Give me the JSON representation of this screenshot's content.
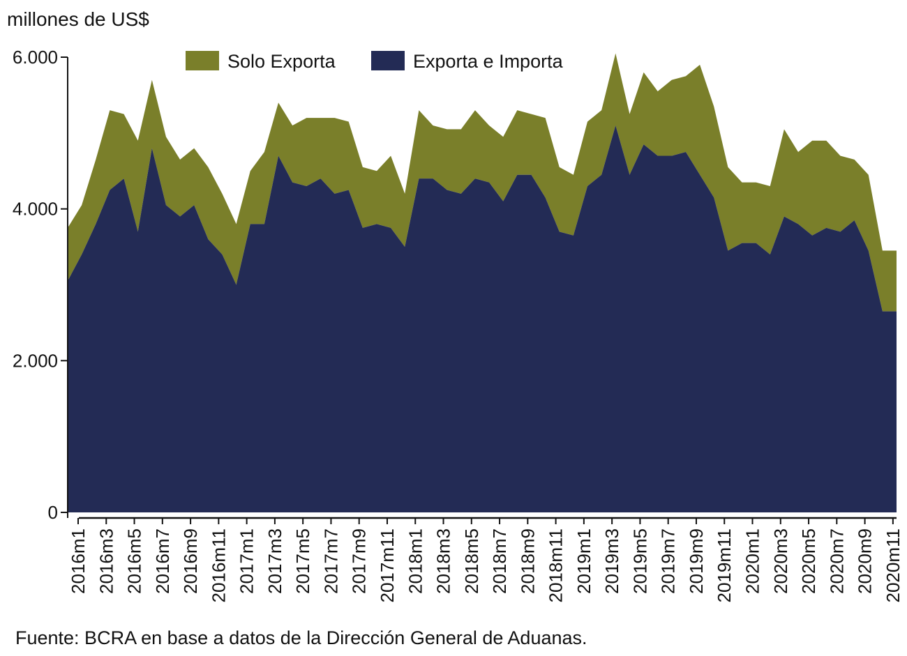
{
  "unit_label": "millones de US$",
  "source": "Fuente: BCRA en base a datos de la Dirección General de Aduanas.",
  "colors": {
    "exporta_importa": "#232b55",
    "solo_exporta": "#7a7f2a",
    "axis": "#111111"
  },
  "chart_data": {
    "type": "area",
    "stacked": true,
    "title": "",
    "xlabel": "",
    "ylabel": "millones de US$",
    "ylim": [
      0,
      6000
    ],
    "yticks": [
      0,
      2000,
      4000,
      6000
    ],
    "ytick_labels": [
      "0",
      "2.000",
      "4.000",
      "6.000"
    ],
    "grid": false,
    "legend_position": "top",
    "x": [
      "2016m1",
      "2016m2",
      "2016m3",
      "2016m4",
      "2016m5",
      "2016m6",
      "2016m7",
      "2016m8",
      "2016m9",
      "2016m10",
      "2016m11",
      "2016m12",
      "2017m1",
      "2017m2",
      "2017m3",
      "2017m4",
      "2017m5",
      "2017m6",
      "2017m7",
      "2017m8",
      "2017m9",
      "2017m10",
      "2017m11",
      "2017m12",
      "2018m1",
      "2018m2",
      "2018m3",
      "2018m4",
      "2018m5",
      "2018m6",
      "2018m7",
      "2018m8",
      "2018m9",
      "2018m10",
      "2018m11",
      "2018m12",
      "2019m1",
      "2019m2",
      "2019m3",
      "2019m4",
      "2019m5",
      "2019m6",
      "2019m7",
      "2019m8",
      "2019m9",
      "2019m10",
      "2019m11",
      "2019m12",
      "2020m1",
      "2020m2",
      "2020m3",
      "2020m4",
      "2020m5",
      "2020m6",
      "2020m7",
      "2020m8",
      "2020m9",
      "2020m10",
      "2020m11",
      "2020m12"
    ],
    "xtick_labels": [
      "2016m1",
      "2016m3",
      "2016m5",
      "2016m7",
      "2016m9",
      "2016m11",
      "2017m1",
      "2017m3",
      "2017m5",
      "2017m7",
      "2017m9",
      "2017m11",
      "2018m1",
      "2018m3",
      "2018m5",
      "2018m7",
      "2018m9",
      "2018m11",
      "2019m1",
      "2019m3",
      "2019m5",
      "2019m7",
      "2019m9",
      "2019m11",
      "2020m1",
      "2020m3",
      "2020m5",
      "2020m7",
      "2020m9",
      "2020m11"
    ],
    "series": [
      {
        "name": "Exporta e Importa",
        "values": [
          3050,
          3400,
          3800,
          4250,
          4400,
          3700,
          4800,
          4050,
          3900,
          4050,
          3600,
          3400,
          3000,
          3800,
          3800,
          4700,
          4350,
          4300,
          4400,
          4200,
          4250,
          3750,
          3800,
          3750,
          3500,
          4400,
          4400,
          4250,
          4200,
          4400,
          4350,
          4100,
          4450,
          4450,
          4150,
          3700,
          3650,
          4300,
          4450,
          5100,
          4450,
          4850,
          4700,
          4700,
          4750,
          4450,
          4150,
          3450,
          3550,
          3550,
          3400,
          3900,
          3800,
          3650,
          3750,
          3700,
          3850,
          3450,
          2650,
          2650
        ]
      },
      {
        "name": "Solo Exporta",
        "values": [
          700,
          650,
          850,
          1050,
          850,
          1200,
          900,
          900,
          750,
          750,
          950,
          800,
          800,
          700,
          950,
          700,
          750,
          900,
          800,
          1000,
          900,
          800,
          700,
          950,
          700,
          900,
          700,
          800,
          850,
          900,
          750,
          850,
          850,
          800,
          1050,
          850,
          800,
          850,
          850,
          950,
          800,
          950,
          850,
          1000,
          1000,
          1450,
          1200,
          1100,
          800,
          800,
          900,
          1150,
          950,
          1250,
          1150,
          1000,
          800,
          1000,
          800,
          800
        ]
      }
    ]
  }
}
